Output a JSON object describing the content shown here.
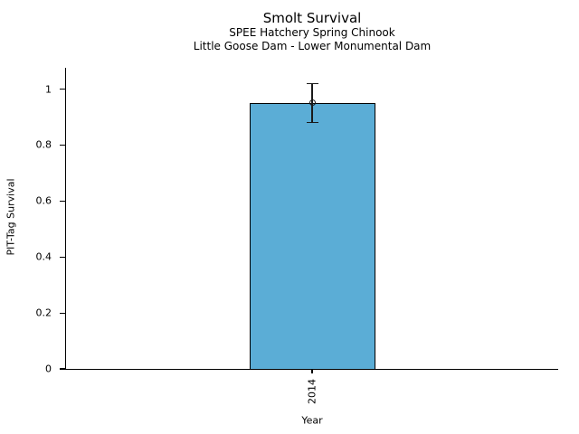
{
  "chart_data": {
    "type": "bar",
    "title": "Smolt Survival",
    "subtitle1": "SPEE Hatchery Spring Chinook",
    "subtitle2": "Little Goose Dam - Lower Monumental Dam",
    "xlabel": "Year",
    "ylabel": "PIT-Tag Survival",
    "categories": [
      "2014"
    ],
    "values": [
      0.95
    ],
    "error_low": [
      0.88
    ],
    "error_high": [
      1.02
    ],
    "ylim": [
      0,
      1.076
    ],
    "yticks": [
      0,
      0.2,
      0.4,
      0.6,
      0.8,
      1
    ],
    "grid": false,
    "legend": false,
    "marker": "open-circle",
    "colors": {
      "bar_fill": "#5badd6",
      "bar_edge": "#000000",
      "error": "#1a1a1a",
      "axis": "#000000",
      "text": "#000000",
      "background": "#ffffff"
    }
  }
}
